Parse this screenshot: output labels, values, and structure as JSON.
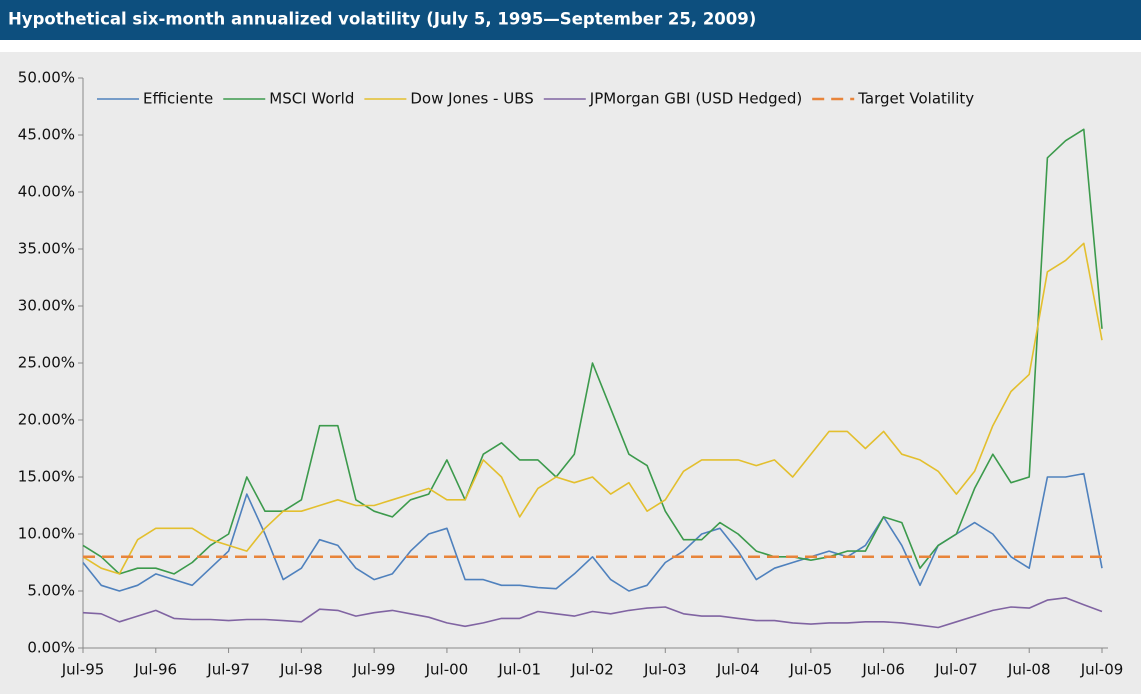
{
  "chart_data": {
    "type": "line",
    "title": "Hypothetical six-month annualized volatility (July 5, 1995—September 25, 2009)",
    "categories": [
      "Jul-95",
      null,
      null,
      null,
      "Jul-96",
      null,
      null,
      null,
      "Jul-97",
      null,
      null,
      null,
      "Jul-98",
      null,
      null,
      null,
      "Jul-99",
      null,
      null,
      null,
      "Jul-00",
      null,
      null,
      null,
      "Jul-01",
      null,
      null,
      null,
      "Jul-02",
      null,
      null,
      null,
      "Jul-03",
      null,
      null,
      null,
      "Jul-04",
      null,
      null,
      null,
      "Jul-05",
      null,
      null,
      null,
      "Jul-06",
      null,
      null,
      null,
      "Jul-07",
      null,
      null,
      null,
      "Jul-08",
      null,
      null,
      null,
      "Jul-09"
    ],
    "series": [
      {
        "name": "Efficiente",
        "color": "#4f81bd",
        "values": [
          7.5,
          5.5,
          5,
          5.5,
          6.5,
          6,
          5.5,
          7,
          8.5,
          13.5,
          10,
          6,
          7,
          9.5,
          9,
          7,
          6,
          6.5,
          8.5,
          10,
          10.5,
          6,
          6,
          5.5,
          5.5,
          5.3,
          5.2,
          6.5,
          8,
          6,
          5,
          5.5,
          7.5,
          8.5,
          10,
          10.5,
          8.5,
          6,
          7,
          7.5,
          8,
          8.5,
          8,
          9,
          11.5,
          9,
          5.5,
          9,
          10,
          11,
          10,
          8,
          7,
          15,
          15,
          15.3,
          7
        ]
      },
      {
        "name": "MSCI World",
        "color": "#3c9a4c",
        "values": [
          9,
          8,
          6.5,
          7,
          7,
          6.5,
          7.5,
          9,
          10,
          15,
          12,
          12,
          13,
          19.5,
          19.5,
          13,
          12,
          11.5,
          13,
          13.5,
          16.5,
          13,
          17,
          18,
          16.5,
          16.5,
          15,
          17,
          25,
          21,
          17,
          16,
          12,
          9.5,
          9.5,
          11,
          10,
          8.5,
          8,
          8,
          7.7,
          8,
          8.5,
          8.5,
          11.5,
          11,
          7,
          9,
          10,
          14,
          17,
          14.5,
          15,
          43,
          44.5,
          45.5,
          28
        ]
      },
      {
        "name": "Dow Jones - UBS",
        "color": "#e3bf2e",
        "values": [
          8,
          7,
          6.5,
          9.5,
          10.5,
          10.5,
          10.5,
          9.5,
          9,
          8.5,
          10.5,
          12,
          12,
          12.5,
          13,
          12.5,
          12.5,
          13,
          13.5,
          14,
          13,
          13,
          16.5,
          15,
          11.5,
          14,
          15,
          14.5,
          15,
          13.5,
          14.5,
          12,
          13,
          15.5,
          16.5,
          16.5,
          16.5,
          16,
          16.5,
          15,
          17,
          19,
          19,
          17.5,
          19,
          17,
          16.5,
          15.5,
          13.5,
          15.5,
          19.5,
          22.5,
          24,
          33,
          34,
          35.5,
          27
        ]
      },
      {
        "name": "JPMorgan GBI (USD Hedged)",
        "color": "#8064a2",
        "values": [
          3.1,
          3,
          2.3,
          2.8,
          3.3,
          2.6,
          2.5,
          2.5,
          2.4,
          2.5,
          2.5,
          2.4,
          2.3,
          3.4,
          3.3,
          2.8,
          3.1,
          3.3,
          3,
          2.7,
          2.2,
          1.9,
          2.2,
          2.6,
          2.6,
          3.2,
          3,
          2.8,
          3.2,
          3,
          3.3,
          3.5,
          3.6,
          3,
          2.8,
          2.8,
          2.6,
          2.4,
          2.4,
          2.2,
          2.1,
          2.2,
          2.2,
          2.3,
          2.3,
          2.2,
          2,
          1.8,
          2.3,
          2.8,
          3.3,
          3.6,
          3.5,
          4.2,
          4.4,
          3.8,
          3.2
        ]
      },
      {
        "name": "Target Volatility",
        "color": "#e8843a",
        "dashed": true,
        "values": [
          8,
          8,
          8,
          8,
          8,
          8,
          8,
          8,
          8,
          8,
          8,
          8,
          8,
          8,
          8,
          8,
          8,
          8,
          8,
          8,
          8,
          8,
          8,
          8,
          8,
          8,
          8,
          8,
          8,
          8,
          8,
          8,
          8,
          8,
          8,
          8,
          8,
          8,
          8,
          8,
          8,
          8,
          8,
          8,
          8,
          8,
          8,
          8,
          8,
          8,
          8,
          8,
          8,
          8,
          8,
          8,
          8
        ]
      }
    ],
    "ylim": [
      0,
      50
    ],
    "yticks": [
      {
        "value": 0,
        "label": "0.00%"
      },
      {
        "value": 5,
        "label": "5.00%"
      },
      {
        "value": 10,
        "label": "10.00%"
      },
      {
        "value": 15,
        "label": "15.00%"
      },
      {
        "value": 20,
        "label": "20.00%"
      },
      {
        "value": 25,
        "label": "25.00%"
      },
      {
        "value": 30,
        "label": "30.00%"
      },
      {
        "value": 35,
        "label": "35.00%"
      },
      {
        "value": 40,
        "label": "40.00%"
      },
      {
        "value": 45,
        "label": "45.00%"
      },
      {
        "value": 50,
        "label": "50.00%"
      }
    ],
    "legend": "top"
  }
}
